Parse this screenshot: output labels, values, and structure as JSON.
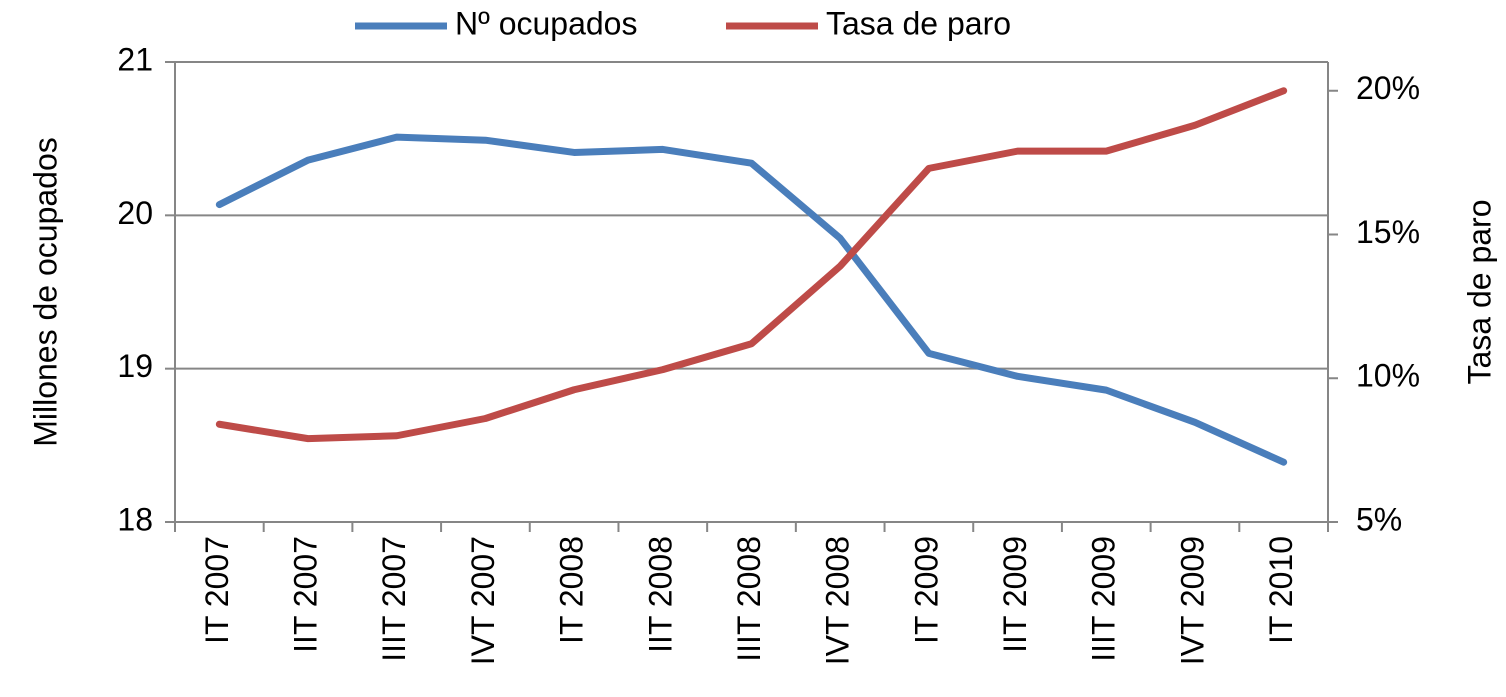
{
  "chart_data": {
    "type": "line",
    "categories": [
      "IT 2007",
      "IIT 2007",
      "IIIT 2007",
      "IVT 2007",
      "IT 2008",
      "IIT 2008",
      "IIIT 2008",
      "IVT 2008",
      "IT 2009",
      "IIT 2009",
      "IIIT 2009",
      "IVT 2009",
      "IT 2010"
    ],
    "series": [
      {
        "name": "Nº ocupados",
        "color": "#4a7ebb",
        "values": [
          20.07,
          20.36,
          20.51,
          20.49,
          20.41,
          20.43,
          20.34,
          19.85,
          19.1,
          18.95,
          18.86,
          18.65,
          18.39
        ]
      },
      {
        "name": "Tasa de paro",
        "color": "#be4b48",
        "axis": "y2",
        "values": [
          8.4,
          7.9,
          8.0,
          8.6,
          9.6,
          10.3,
          11.2,
          13.9,
          17.3,
          17.9,
          17.9,
          18.8,
          20.0
        ]
      }
    ],
    "ylabel": "Millones de ocupados",
    "y2label": "Tasa de paro",
    "ylim": [
      18,
      21
    ],
    "yticks": [
      18,
      19,
      20,
      21
    ],
    "y2lim": [
      5,
      21
    ],
    "y2ticks": [
      {
        "value": 5,
        "label": "5%"
      },
      {
        "value": 10,
        "label": "10%"
      },
      {
        "value": 15,
        "label": "15%"
      },
      {
        "value": 20,
        "label": "20%"
      }
    ],
    "grid": true,
    "legend": "top"
  }
}
